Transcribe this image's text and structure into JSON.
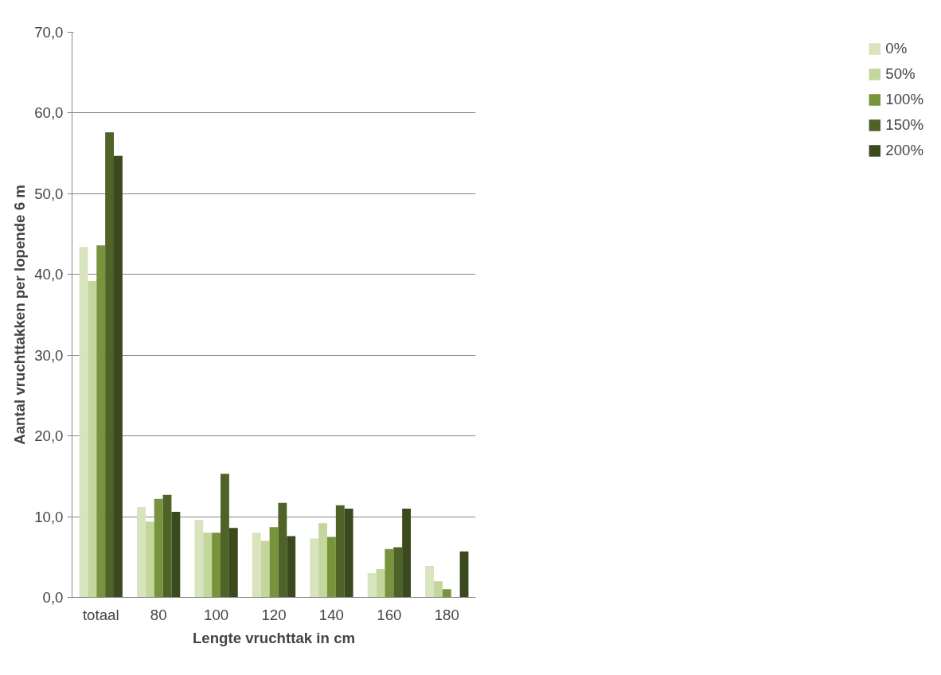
{
  "chart_data": {
    "type": "bar",
    "xlabel": "Lengte vruchttak in cm",
    "ylabel": "Aantal vruchttakken per lopende 6 m",
    "categories": [
      "totaal",
      "80",
      "100",
      "120",
      "140",
      "160",
      "180"
    ],
    "series": [
      {
        "name": "0%",
        "color": "#d7e4bd",
        "values": [
          43.4,
          11.2,
          9.6,
          8.0,
          7.3,
          3.0,
          3.9
        ]
      },
      {
        "name": "50%",
        "color": "#c3d69b",
        "values": [
          39.2,
          9.4,
          8.0,
          7.0,
          9.2,
          3.5,
          2.0
        ]
      },
      {
        "name": "100%",
        "color": "#77933c",
        "values": [
          43.6,
          12.2,
          8.0,
          8.7,
          7.5,
          6.0,
          1.0
        ]
      },
      {
        "name": "150%",
        "color": "#4f6228",
        "values": [
          57.6,
          12.7,
          15.3,
          11.7,
          11.4,
          6.2,
          null
        ]
      },
      {
        "name": "200%",
        "color": "#3a4a1e",
        "values": [
          54.7,
          10.6,
          8.6,
          7.6,
          11.0,
          11.0,
          5.7
        ]
      }
    ],
    "ylim": [
      0,
      70
    ],
    "yticks": [
      {
        "value": 0,
        "label": "0,0"
      },
      {
        "value": 10,
        "label": "10,0"
      },
      {
        "value": 20,
        "label": "20,0"
      },
      {
        "value": 30,
        "label": "30,0"
      },
      {
        "value": 40,
        "label": "40,0"
      },
      {
        "value": 50,
        "label": "50,0"
      },
      {
        "value": 60,
        "label": "60,0"
      },
      {
        "value": 70,
        "label": "70,0"
      }
    ],
    "grid": "y",
    "legend": "right"
  }
}
